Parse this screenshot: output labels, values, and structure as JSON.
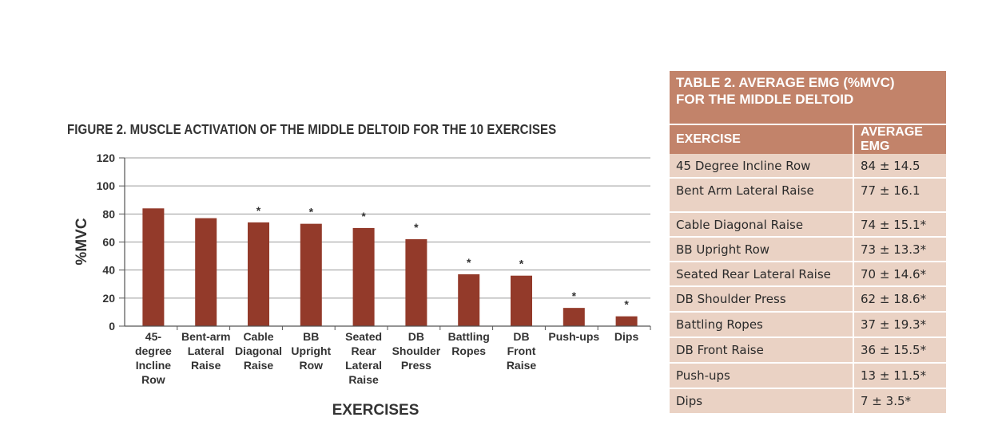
{
  "figure": {
    "title": "FIGURE 2.  MUSCLE ACTIVATION OF THE MIDDLE DELTOID FOR THE 10 EXERCISES"
  },
  "colors": {
    "bar": "#933a2a",
    "table_header": "#c2836a",
    "table_cell": "#ead2c4"
  },
  "chart_data": {
    "type": "bar",
    "title": "FIGURE 2.  MUSCLE ACTIVATION OF THE MIDDLE DELTOID FOR THE 10 EXERCISES",
    "xlabel": "EXERCISES",
    "ylabel": "%MVC",
    "ylim": [
      0,
      120
    ],
    "yticks": [
      0,
      20,
      40,
      60,
      80,
      100,
      120
    ],
    "grid": true,
    "categories": [
      [
        "45-",
        "degree",
        "Incline",
        "Row"
      ],
      [
        "Bent-arm",
        "Lateral",
        "Raise"
      ],
      [
        "Cable",
        "Diagonal",
        "Raise"
      ],
      [
        "BB",
        "Upright",
        "Row"
      ],
      [
        "Seated",
        "Rear",
        "Lateral",
        "Raise"
      ],
      [
        "DB",
        "Shoulder",
        "Press"
      ],
      [
        "Battling",
        "Ropes"
      ],
      [
        "DB",
        "Front",
        "Raise"
      ],
      [
        "Push-ups"
      ],
      [
        "Dips"
      ]
    ],
    "values": [
      84,
      77,
      74,
      73,
      70,
      62,
      37,
      36,
      13,
      7
    ],
    "significance": [
      false,
      false,
      true,
      true,
      true,
      true,
      true,
      true,
      true,
      true
    ],
    "significance_marker": "*"
  },
  "table": {
    "title_line1": "TABLE 2. AVERAGE EMG (%MVC)",
    "title_line2": "FOR THE MIDDLE DELTOID",
    "col_exercise": "EXERCISE",
    "col_emg": "AVERAGE EMG",
    "rows": [
      {
        "exercise": "45 Degree Incline Row",
        "emg": "84 ± 14.5"
      },
      {
        "exercise": "Bent Arm Lateral Raise",
        "emg": "77 ± 16.1"
      },
      {
        "exercise": "Cable Diagonal Raise",
        "emg": "74 ± 15.1*"
      },
      {
        "exercise": "BB Upright Row",
        "emg": "73 ± 13.3*"
      },
      {
        "exercise": "Seated Rear Lateral Raise",
        "emg": "70 ± 14.6*"
      },
      {
        "exercise": "DB Shoulder Press",
        "emg": "62 ± 18.6*"
      },
      {
        "exercise": "Battling Ropes",
        "emg": "37 ± 19.3*"
      },
      {
        "exercise": "DB Front Raise",
        "emg": "36 ± 15.5*"
      },
      {
        "exercise": "Push-ups",
        "emg": "13 ± 11.5*"
      },
      {
        "exercise": "Dips",
        "emg": "7 ± 3.5*"
      }
    ]
  }
}
